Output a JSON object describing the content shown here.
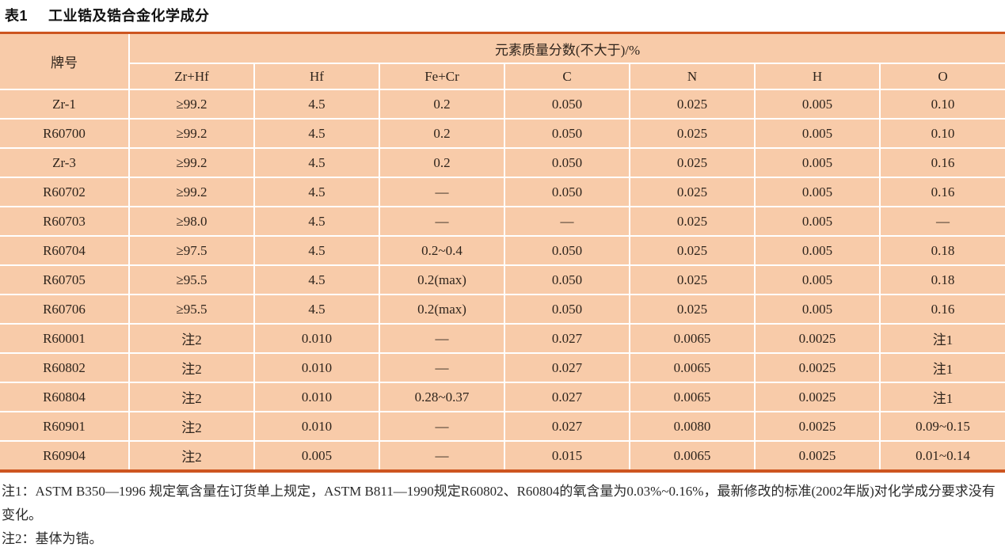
{
  "title": {
    "label": "表1",
    "text": "工业锆及锆合金化学成分"
  },
  "table": {
    "header": {
      "grade_label": "牌号",
      "group_label": "元素质量分数(不大于)/%",
      "columns": [
        "Zr+Hf",
        "Hf",
        "Fe+Cr",
        "C",
        "N",
        "H",
        "O"
      ]
    },
    "rows": [
      {
        "grade": "Zr-1",
        "values": [
          "≥99.2",
          "4.5",
          "0.2",
          "0.050",
          "0.025",
          "0.005",
          "0.10"
        ]
      },
      {
        "grade": "R60700",
        "values": [
          "≥99.2",
          "4.5",
          "0.2",
          "0.050",
          "0.025",
          "0.005",
          "0.10"
        ]
      },
      {
        "grade": "Zr-3",
        "values": [
          "≥99.2",
          "4.5",
          "0.2",
          "0.050",
          "0.025",
          "0.005",
          "0.16"
        ]
      },
      {
        "grade": "R60702",
        "values": [
          "≥99.2",
          "4.5",
          "—",
          "0.050",
          "0.025",
          "0.005",
          "0.16"
        ]
      },
      {
        "grade": "R60703",
        "values": [
          "≥98.0",
          "4.5",
          "—",
          "—",
          "0.025",
          "0.005",
          "—"
        ]
      },
      {
        "grade": "R60704",
        "values": [
          "≥97.5",
          "4.5",
          "0.2~0.4",
          "0.050",
          "0.025",
          "0.005",
          "0.18"
        ]
      },
      {
        "grade": "R60705",
        "values": [
          "≥95.5",
          "4.5",
          "0.2(max)",
          "0.050",
          "0.025",
          "0.005",
          "0.18"
        ]
      },
      {
        "grade": "R60706",
        "values": [
          "≥95.5",
          "4.5",
          "0.2(max)",
          "0.050",
          "0.025",
          "0.005",
          "0.16"
        ]
      },
      {
        "grade": "R60001",
        "values": [
          "注2",
          "0.010",
          "—",
          "0.027",
          "0.0065",
          "0.0025",
          "注1"
        ]
      },
      {
        "grade": "R60802",
        "values": [
          "注2",
          "0.010",
          "—",
          "0.027",
          "0.0065",
          "0.0025",
          "注1"
        ]
      },
      {
        "grade": "R60804",
        "values": [
          "注2",
          "0.010",
          "0.28~0.37",
          "0.027",
          "0.0065",
          "0.0025",
          "注1"
        ]
      },
      {
        "grade": "R60901",
        "values": [
          "注2",
          "0.010",
          "—",
          "0.027",
          "0.0080",
          "0.0025",
          "0.09~0.15"
        ]
      },
      {
        "grade": "R60904",
        "values": [
          "注2",
          "0.005",
          "—",
          "0.015",
          "0.0065",
          "0.0025",
          "0.01~0.14"
        ]
      }
    ]
  },
  "notes": [
    "注1：ASTM B350—1996 规定氧含量在订货单上规定，ASTM B811—1990规定R60802、R60804的氧含量为0.03%~0.16%，最新修改的标准(2002年版)对化学成分要求没有变化。",
    "注2：基体为锆。"
  ],
  "colors": {
    "cell_bg": "#f8cba9",
    "accent_rule": "#cd5520",
    "grid_line": "#ffffff",
    "text": "#2e241c"
  }
}
